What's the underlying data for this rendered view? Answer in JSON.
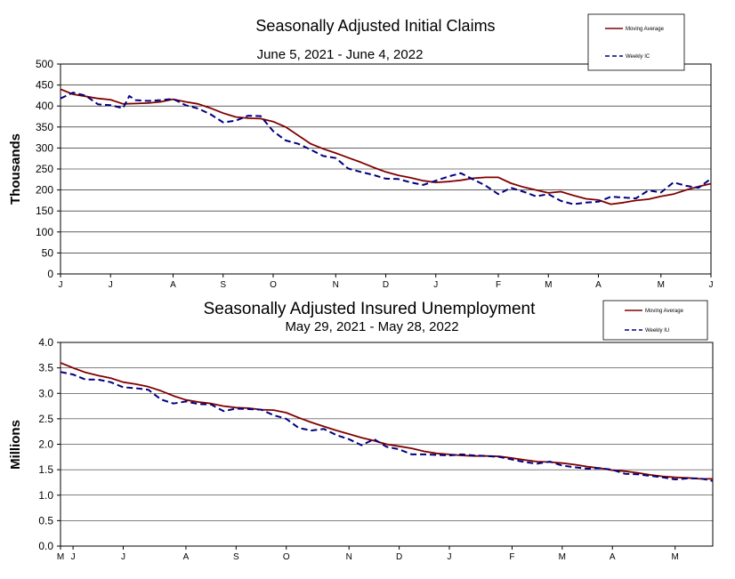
{
  "chart_data": [
    {
      "type": "line",
      "title": "Seasonally Adjusted Initial Claims",
      "subtitle": "June 5, 2021 - June 4, 2022",
      "ylabel": "Thousands",
      "ylim": [
        0,
        500
      ],
      "yticks": [
        "0",
        "50",
        "100",
        "150",
        "200",
        "250",
        "300",
        "350",
        "400",
        "450",
        "500"
      ],
      "ytick_values": [
        0,
        50,
        100,
        150,
        200,
        250,
        300,
        350,
        400,
        450,
        500
      ],
      "xticks": [
        "J",
        "J",
        "A",
        "S",
        "O",
        "N",
        "D",
        "J",
        "F",
        "M",
        "A",
        "M",
        "J"
      ],
      "xtick_weeks": [
        0,
        8,
        18,
        26,
        34,
        44,
        52,
        60,
        70,
        78,
        86,
        96,
        104
      ],
      "grid": true,
      "legend": {
        "position": "top-right",
        "entries": [
          "Moving Average",
          "Weekly IC"
        ]
      },
      "series": [
        {
          "name": "Moving Average",
          "color": "#800000",
          "style": "solid",
          "weeks": [
            0,
            2,
            4,
            6,
            8,
            10,
            12,
            14,
            16,
            18,
            20,
            22,
            24,
            26,
            28,
            30,
            32,
            34,
            36,
            38,
            40,
            42,
            44,
            46,
            48,
            50,
            52,
            54,
            56,
            58,
            60,
            62,
            64,
            66,
            68,
            70,
            72,
            74,
            76,
            78,
            80,
            82,
            84,
            86,
            88,
            90,
            92,
            94,
            96,
            98,
            100,
            102,
            104
          ],
          "values": [
            440,
            428,
            423,
            418,
            415,
            405,
            406,
            407,
            410,
            416,
            410,
            405,
            395,
            383,
            374,
            371,
            370,
            363,
            350,
            330,
            310,
            298,
            288,
            277,
            266,
            254,
            243,
            235,
            229,
            222,
            218,
            220,
            223,
            228,
            230,
            230,
            216,
            207,
            200,
            193,
            196,
            187,
            179,
            176,
            166,
            170,
            175,
            178,
            185,
            190,
            200,
            208,
            215
          ]
        },
        {
          "name": "Weekly IC",
          "color": "#000080",
          "style": "dashed",
          "weeks": [
            0,
            2,
            4,
            6,
            8,
            10,
            11,
            12,
            14,
            16,
            18,
            20,
            22,
            24,
            26,
            28,
            30,
            32,
            34,
            36,
            38,
            40,
            42,
            44,
            46,
            48,
            50,
            52,
            54,
            56,
            58,
            60,
            62,
            64,
            66,
            68,
            70,
            72,
            74,
            76,
            78,
            80,
            82,
            84,
            86,
            88,
            90,
            92,
            94,
            96,
            98,
            100,
            102,
            104
          ],
          "values": [
            418,
            432,
            425,
            404,
            402,
            395,
            424,
            414,
            412,
            414,
            417,
            402,
            394,
            380,
            361,
            365,
            377,
            376,
            340,
            318,
            310,
            296,
            281,
            276,
            251,
            243,
            236,
            227,
            226,
            218,
            212,
            222,
            232,
            240,
            225,
            210,
            190,
            205,
            196,
            185,
            190,
            174,
            166,
            170,
            172,
            184,
            182,
            180,
            199,
            194,
            218,
            210,
            205,
            227
          ]
        }
      ]
    },
    {
      "type": "line",
      "title": "Seasonally Adjusted Insured Unemployment",
      "subtitle": "May 29, 2021 - May 28, 2022",
      "ylabel": "Millions",
      "ylim": [
        0.0,
        4.0
      ],
      "yticks": [
        "0.0",
        "0.5",
        "1.0",
        "1.5",
        "2.0",
        "2.5",
        "3.0",
        "3.5",
        "4.0"
      ],
      "ytick_values": [
        0.0,
        0.5,
        1.0,
        1.5,
        2.0,
        2.5,
        3.0,
        3.5,
        4.0
      ],
      "xticks": [
        "M",
        "J",
        "J",
        "A",
        "S",
        "O",
        "N",
        "D",
        "J",
        "F",
        "M",
        "A",
        "M"
      ],
      "xtick_weeks": [
        0,
        2,
        10,
        20,
        28,
        36,
        46,
        54,
        62,
        72,
        80,
        88,
        98
      ],
      "grid": true,
      "legend": {
        "position": "top-right",
        "entries": [
          "Moving Average",
          "Weekly IU"
        ]
      },
      "series": [
        {
          "name": "Moving Average",
          "color": "#800000",
          "style": "solid",
          "weeks": [
            0,
            2,
            4,
            6,
            8,
            10,
            12,
            14,
            16,
            18,
            20,
            22,
            24,
            26,
            28,
            30,
            32,
            34,
            36,
            38,
            40,
            42,
            44,
            46,
            48,
            50,
            52,
            54,
            56,
            58,
            60,
            62,
            64,
            66,
            68,
            70,
            72,
            74,
            76,
            78,
            80,
            82,
            84,
            86,
            88,
            90,
            92,
            94,
            96,
            98,
            100,
            102,
            104
          ],
          "values": [
            3.6,
            3.5,
            3.41,
            3.35,
            3.3,
            3.22,
            3.18,
            3.13,
            3.05,
            2.95,
            2.87,
            2.83,
            2.8,
            2.75,
            2.72,
            2.71,
            2.68,
            2.67,
            2.62,
            2.52,
            2.43,
            2.35,
            2.27,
            2.2,
            2.13,
            2.07,
            2.0,
            1.96,
            1.92,
            1.86,
            1.82,
            1.8,
            1.78,
            1.77,
            1.77,
            1.76,
            1.73,
            1.69,
            1.66,
            1.65,
            1.63,
            1.6,
            1.56,
            1.53,
            1.49,
            1.47,
            1.44,
            1.4,
            1.37,
            1.35,
            1.34,
            1.32,
            1.32
          ]
        },
        {
          "name": "Weekly IU",
          "color": "#000080",
          "style": "dashed",
          "weeks": [
            0,
            2,
            4,
            6,
            8,
            10,
            12,
            14,
            16,
            18,
            20,
            22,
            24,
            26,
            28,
            30,
            32,
            34,
            36,
            38,
            40,
            42,
            44,
            46,
            48,
            50,
            52,
            54,
            56,
            58,
            60,
            62,
            64,
            66,
            68,
            70,
            72,
            74,
            76,
            78,
            80,
            82,
            84,
            86,
            88,
            90,
            92,
            94,
            96,
            98,
            100,
            102,
            104
          ],
          "values": [
            3.42,
            3.37,
            3.27,
            3.27,
            3.22,
            3.12,
            3.1,
            3.07,
            2.88,
            2.8,
            2.84,
            2.79,
            2.78,
            2.65,
            2.7,
            2.69,
            2.68,
            2.57,
            2.5,
            2.32,
            2.27,
            2.3,
            2.18,
            2.1,
            1.98,
            2.1,
            1.95,
            1.9,
            1.8,
            1.8,
            1.79,
            1.78,
            1.8,
            1.78,
            1.77,
            1.75,
            1.7,
            1.65,
            1.62,
            1.66,
            1.58,
            1.55,
            1.52,
            1.53,
            1.5,
            1.42,
            1.41,
            1.38,
            1.35,
            1.31,
            1.33,
            1.33,
            1.28
          ]
        }
      ]
    }
  ]
}
